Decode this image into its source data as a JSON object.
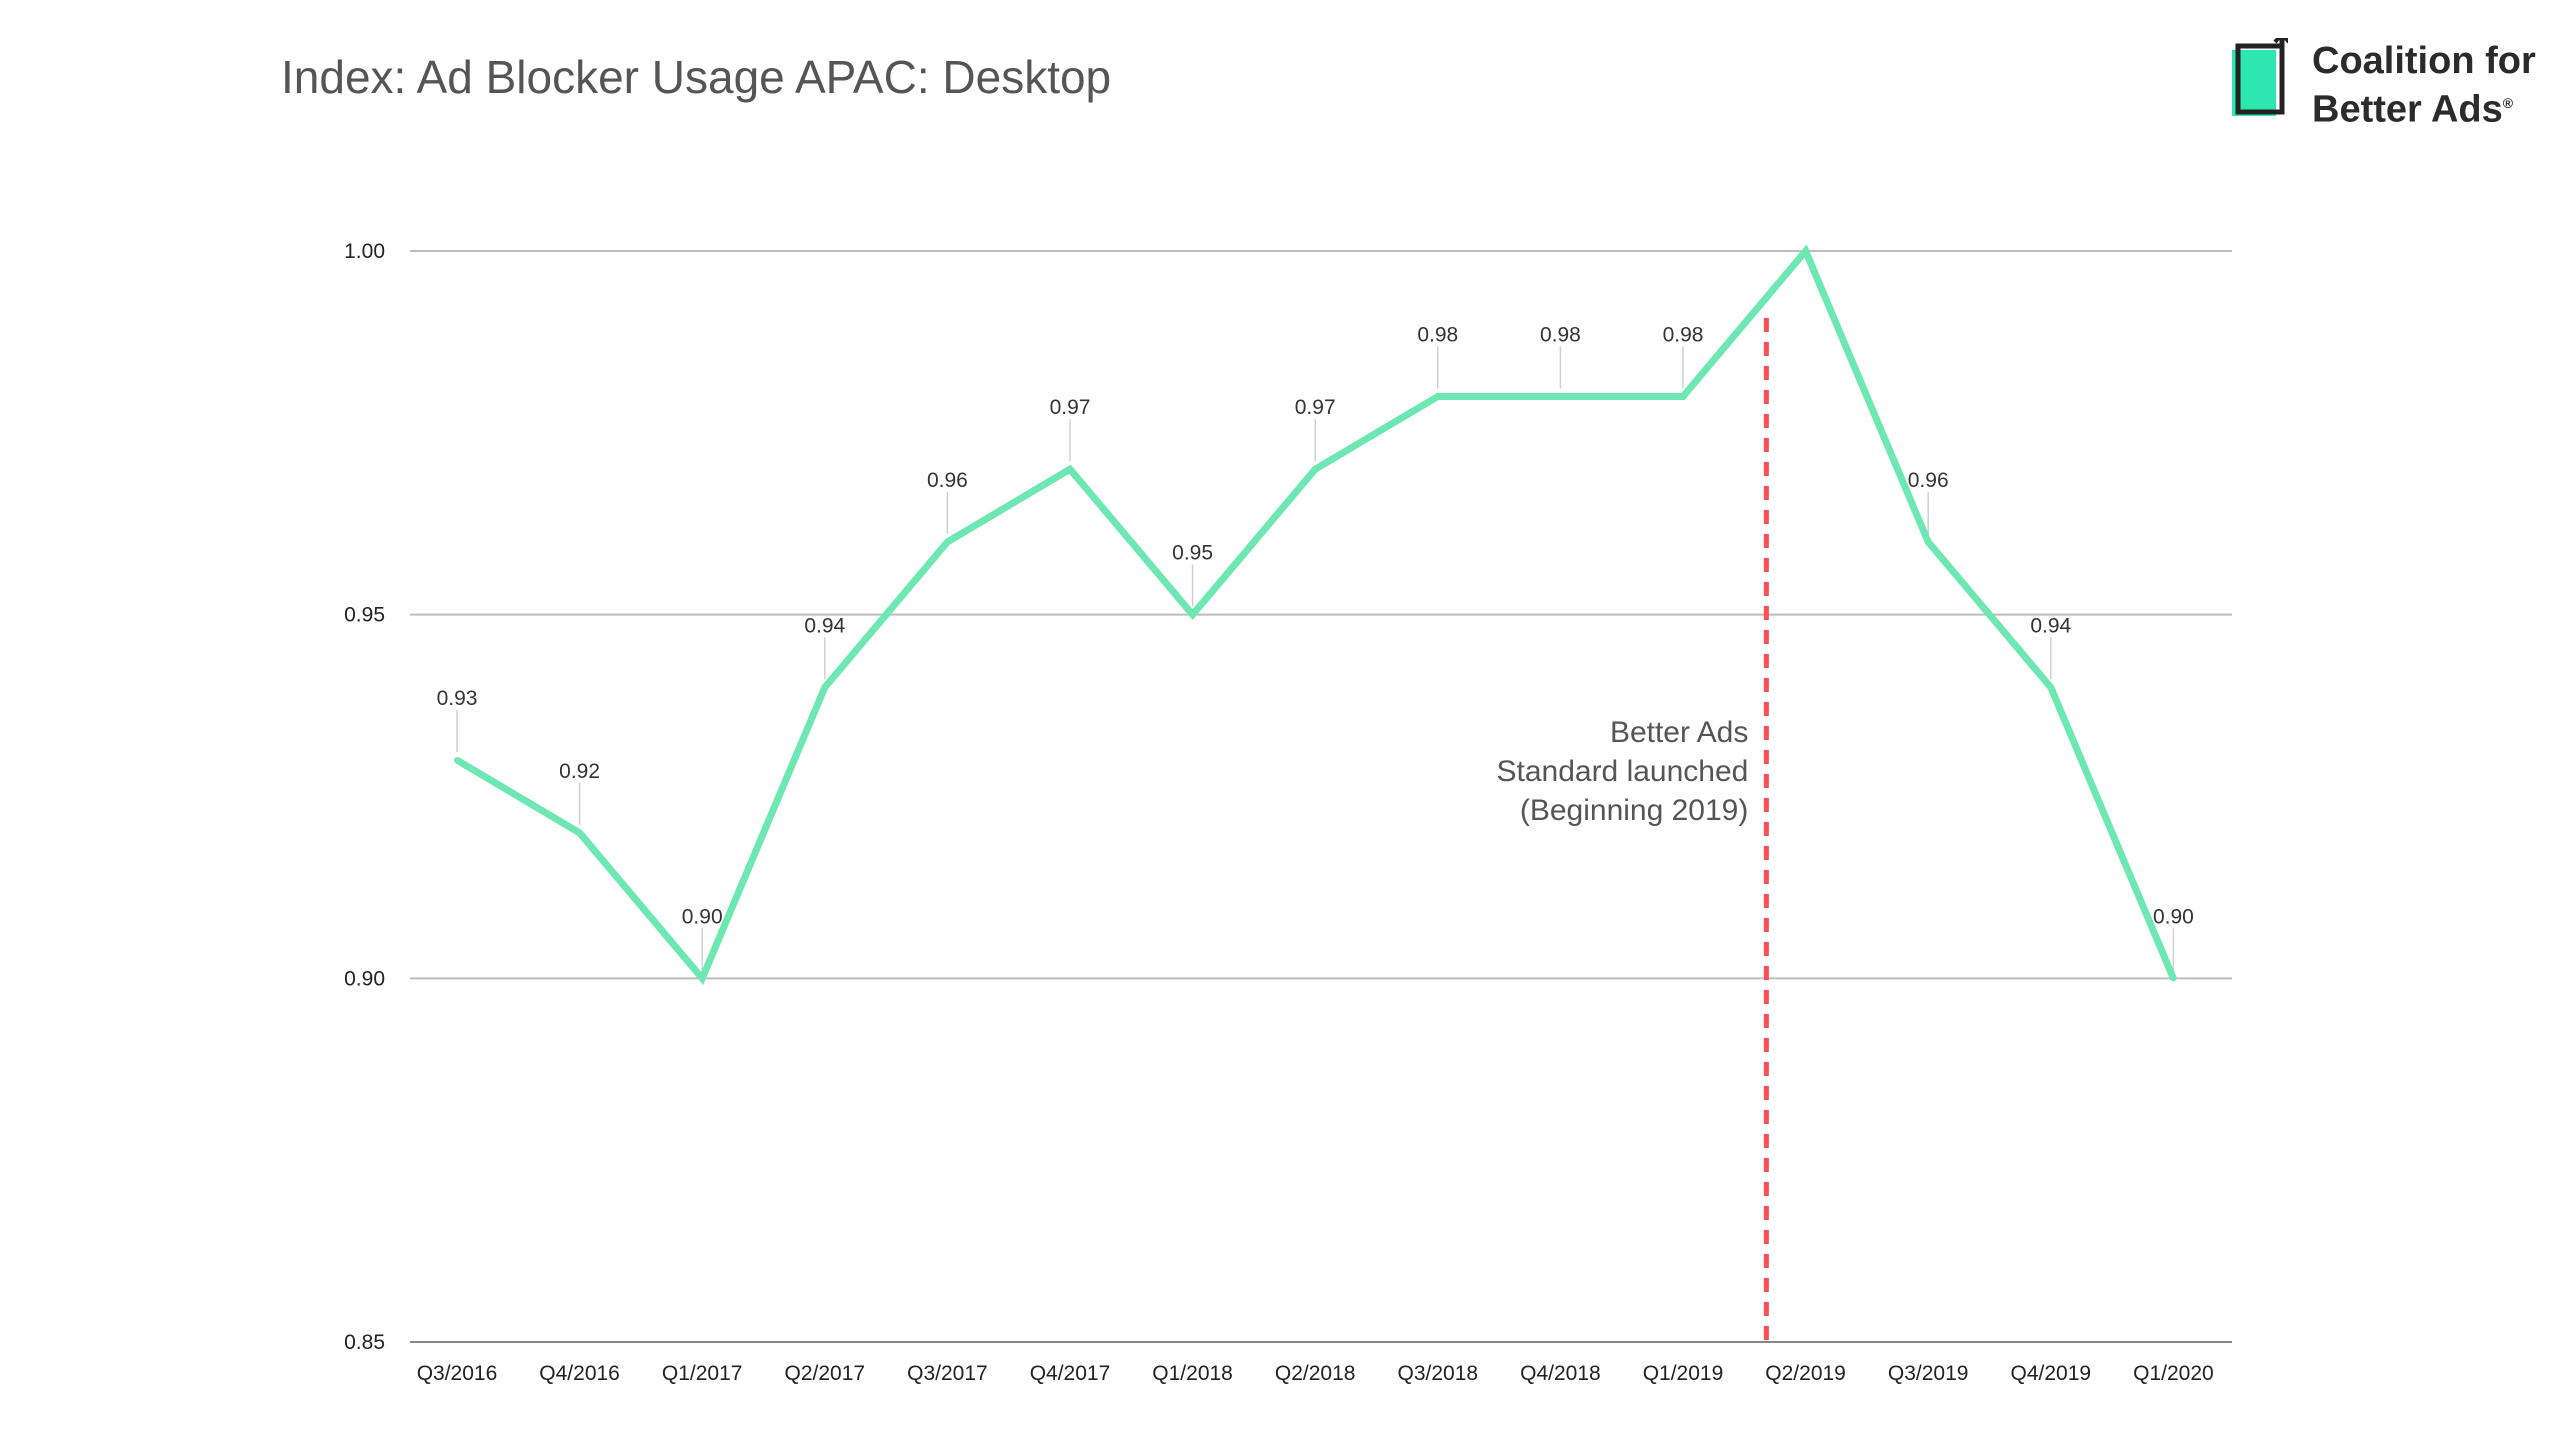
{
  "title": "Index: Ad Blocker Usage APAC: Desktop",
  "logo": {
    "line1": "Coalition for",
    "line2": "Better Ads",
    "reg": "®",
    "accent": "#2ee6b0"
  },
  "colors": {
    "line": "#6ee8b2",
    "marker": "#ff4d5a",
    "grid": "#bdbdbd"
  },
  "chart_data": {
    "type": "line",
    "title": "Index: Ad Blocker Usage APAC: Desktop",
    "categories": [
      "Q3/2016",
      "Q4/2016",
      "Q1/2017",
      "Q2/2017",
      "Q3/2017",
      "Q4/2017",
      "Q1/2018",
      "Q2/2018",
      "Q3/2018",
      "Q4/2018",
      "Q1/2019",
      "Q2/2019",
      "Q3/2019",
      "Q4/2019",
      "Q1/2020"
    ],
    "values": [
      0.93,
      0.92,
      0.9,
      0.94,
      0.96,
      0.97,
      0.95,
      0.97,
      0.98,
      0.98,
      0.98,
      1.0,
      0.96,
      0.94,
      0.9
    ],
    "data_labels": [
      "0.93",
      "0.92",
      "0.90",
      "0.94",
      "0.96",
      "0.97",
      "0.95",
      "0.97",
      "0.98",
      "0.98",
      "0.98",
      "",
      "0.96",
      "0.94",
      "0.90"
    ],
    "ylim": [
      0.85,
      1.0
    ],
    "yticks": [
      0.85,
      0.9,
      0.95,
      1.0
    ],
    "ytick_labels": [
      "0.85",
      "0.90",
      "0.95",
      "1.00"
    ],
    "grid": true,
    "marker_line": {
      "between": [
        "Q1/2019",
        "Q2/2019"
      ],
      "style": "dashed",
      "label_lines": [
        "Better Ads",
        "Standard launched",
        "(Beginning 2019)"
      ]
    }
  }
}
